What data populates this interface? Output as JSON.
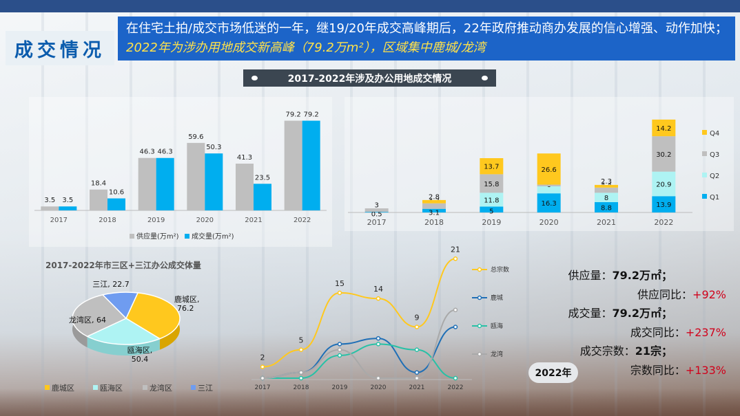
{
  "header": {
    "section_title": "成交情况",
    "summary_plain": "在住宅土拍/成交市场低迷的一年，继19/20年成交高峰期后，22年政府推动商办发展的信心增强、动作加快；",
    "summary_highlight": "2022年为涉办用地成交新高峰（79.2万m²），区域集中鹿城/龙湾",
    "banner_title": "2017-2022年涉及办公用地成交情况"
  },
  "colors": {
    "supply": "#bfbfbf",
    "deal": "#00aeef",
    "q1": "#00aeef",
    "q2": "#aef3f3",
    "q3": "#bfbfbf",
    "q4": "#ffc81e",
    "lucheng": "#ffc81e",
    "ouhai": "#aef3f3",
    "longwan": "#bfbfbf",
    "sanjiang": "#6f9cf0",
    "total": "#ffc81e",
    "lucheng_line": "#1f6fb6",
    "ouhai_line": "#27c1a6",
    "longwan_line": "#a9a9a9"
  },
  "chart_data": [
    {
      "type": "bar",
      "categories": [
        "2017",
        "2018",
        "2019",
        "2020",
        "2021",
        "2022"
      ],
      "series": [
        {
          "name": "供应量(万m²)",
          "values": [
            3.5,
            18.4,
            46.3,
            59.6,
            41.3,
            79.2
          ]
        },
        {
          "name": "成交量(万m²)",
          "values": [
            3.5,
            10.6,
            46.3,
            50.3,
            23.5,
            79.2
          ]
        }
      ],
      "ylim": [
        0,
        85
      ],
      "legend_position": "bottom"
    },
    {
      "type": "bar",
      "stacked": true,
      "categories": [
        "2017",
        "2018",
        "2019",
        "2020",
        "2021",
        "2022"
      ],
      "series": [
        {
          "name": "Q1",
          "values": [
            0.5,
            3.1,
            5.0,
            16.3,
            8.8,
            13.9
          ]
        },
        {
          "name": "Q2",
          "values": [
            0,
            0,
            11.8,
            6,
            8,
            20.9
          ]
        },
        {
          "name": "Q3",
          "values": [
            3,
            4.7,
            15.8,
            1.4,
            4.4,
            30.2
          ]
        },
        {
          "name": "Q4",
          "values": [
            0,
            2.8,
            13.7,
            26.6,
            2.3,
            14.2
          ]
        }
      ],
      "ylim": [
        0,
        85
      ],
      "legend_position": "right"
    },
    {
      "type": "pie",
      "title": "2017-2022年市三区+三江办公成交体量",
      "slices": [
        {
          "name": "鹿城区",
          "value": 76.2
        },
        {
          "name": "瓯海区",
          "value": 50.4
        },
        {
          "name": "龙湾区",
          "value": 64
        },
        {
          "name": "三江",
          "value": 22.7
        }
      ],
      "legend_position": "bottom"
    },
    {
      "type": "line",
      "x": [
        "2017",
        "2018",
        "2019",
        "2020",
        "2021",
        "2022"
      ],
      "series": [
        {
          "name": "总宗数",
          "values": [
            2,
            5,
            15,
            14,
            9,
            21
          ]
        },
        {
          "name": "鹿城",
          "values": [
            0,
            1,
            6,
            7,
            1,
            9
          ]
        },
        {
          "name": "瓯海",
          "values": [
            0,
            0,
            4,
            6,
            5,
            0
          ]
        },
        {
          "name": "龙湾",
          "values": [
            0,
            1,
            5,
            0,
            0,
            12
          ]
        }
      ],
      "ylim": [
        0,
        22
      ],
      "legend_position": "right"
    }
  ],
  "kpis": {
    "supply_label": "供应量：",
    "supply_value": "79.2万㎡；",
    "supply_yoy_label": "供应同比：",
    "supply_yoy_value": "+92%",
    "deal_label": "成交量：",
    "deal_value": "79.2万㎡；",
    "deal_yoy_label": "成交同比：",
    "deal_yoy_value": "+237%",
    "count_label": "成交宗数：",
    "count_value": "21宗；",
    "count_yoy_label": "宗数同比：",
    "count_yoy_value": "+133%",
    "year_badge": "2022年"
  }
}
